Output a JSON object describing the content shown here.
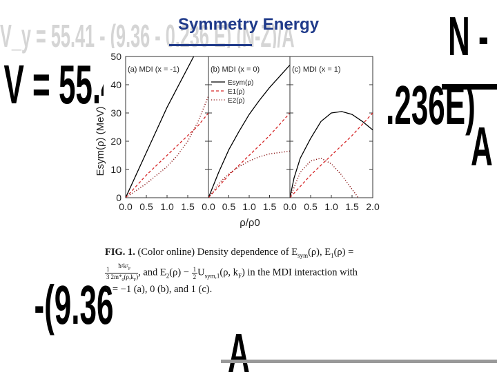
{
  "slide": {
    "title": "Symmetry Energy",
    "background_formula": "V_y = 55.41 - (9.36 - 0.236 E) (N-Z)/A"
  },
  "figure": {
    "ylabel": "Esym(ρ) (MeV)",
    "xlabel": "ρ/ρ0",
    "legend": [
      "Esym(ρ)",
      "E1(ρ)",
      "E2(ρ)"
    ],
    "panel_titles": [
      "(a) MDI (x = -1)",
      "(b) MDI (x = 0)",
      "(c) MDI (x = 1)"
    ],
    "caption_fig": "FIG. 1.",
    "caption_text_1": " (Color online) Density dependence of E",
    "caption_text_2": "(ρ), E",
    "caption_text_3": "(ρ) =",
    "caption_line2_a": ", and E",
    "caption_line2_b": "(ρ) − ",
    "caption_line2_c": "U",
    "caption_line2_d": "(ρ, k",
    "caption_line2_e": ") in the MDI interaction with",
    "caption_line3": "x = −1 (a), 0 (b), and 1 (c)."
  },
  "chart_data": {
    "type": "line",
    "xlabel": "ρ/ρ0",
    "ylabel": "Esym(ρ) (MeV)",
    "xlim": [
      0.0,
      2.0
    ],
    "ylim": [
      0,
      50
    ],
    "x_ticks": [
      "0.0",
      "0.5",
      "1.0",
      "1.5"
    ],
    "x_ticks_last_panel": [
      "0.0",
      "0.5",
      "1.0",
      "1.5",
      "2.0"
    ],
    "y_ticks": [
      "0",
      "10",
      "20",
      "30",
      "40",
      "50"
    ],
    "legend_location": "top-left of panel (b)",
    "panels": [
      {
        "title": "(a) MDI (x = -1)",
        "series": [
          {
            "name": "Esym(ρ)",
            "style": "solid",
            "color": "#000000",
            "x": [
              0,
              0.25,
              0.5,
              0.75,
              1.0,
              1.25,
              1.5,
              1.75
            ],
            "y": [
              0,
              8,
              16,
              24,
              32,
              39,
              46,
              53
            ]
          },
          {
            "name": "E1(ρ)",
            "style": "dashed",
            "color": "#d62728",
            "x": [
              0,
              0.25,
              0.5,
              0.75,
              1.0,
              1.25,
              1.5,
              1.75,
              2.0
            ],
            "y": [
              0,
              4,
              8,
              11.5,
              15,
              18.5,
              22,
              25.5,
              30
            ]
          },
          {
            "name": "E2(ρ)",
            "style": "dotted",
            "color": "#8b1a1a",
            "x": [
              0,
              0.25,
              0.5,
              0.75,
              1.0,
              1.25,
              1.5,
              1.75,
              2.0
            ],
            "y": [
              0,
              2.5,
              5,
              8,
              11,
              15,
              20,
              27,
              36
            ]
          }
        ]
      },
      {
        "title": "(b) MDI (x = 0)",
        "series": [
          {
            "name": "Esym(ρ)",
            "style": "solid",
            "color": "#000000",
            "x": [
              0,
              0.25,
              0.5,
              0.75,
              1.0,
              1.25,
              1.5,
              1.75,
              2.0
            ],
            "y": [
              0,
              9,
              17,
              23.5,
              29.5,
              34.5,
              39,
              43,
              47
            ]
          },
          {
            "name": "E1(ρ)",
            "style": "dashed",
            "color": "#d62728",
            "x": [
              0,
              0.25,
              0.5,
              0.75,
              1.0,
              1.25,
              1.5,
              1.75,
              2.0
            ],
            "y": [
              0,
              4,
              8,
              11.5,
              15,
              18.5,
              22,
              26,
              30
            ]
          },
          {
            "name": "E2(ρ)",
            "style": "dotted",
            "color": "#8b1a1a",
            "x": [
              0,
              0.25,
              0.5,
              0.75,
              1.0,
              1.25,
              1.5,
              1.75,
              2.0
            ],
            "y": [
              0,
              5,
              8.5,
              11,
              13,
              14.5,
              15.5,
              16,
              16.5
            ]
          }
        ]
      },
      {
        "title": "(c) MDI (x = 1)",
        "series": [
          {
            "name": "Esym(ρ)",
            "style": "solid",
            "color": "#000000",
            "x": [
              0,
              0.1,
              0.25,
              0.5,
              0.75,
              1.0,
              1.25,
              1.5,
              1.75,
              2.0
            ],
            "y": [
              0,
              7,
              14,
              21,
              27,
              30,
              30.5,
              29.5,
              27,
              24
            ]
          },
          {
            "name": "E1(ρ)",
            "style": "dashed",
            "color": "#d62728",
            "x": [
              0,
              0.25,
              0.5,
              0.75,
              1.0,
              1.25,
              1.5,
              1.75,
              2.0
            ],
            "y": [
              0,
              4,
              8,
              11.5,
              15,
              18.5,
              22,
              26,
              30
            ]
          },
          {
            "name": "E2(ρ)",
            "style": "dotted",
            "color": "#8b1a1a",
            "x": [
              0,
              0.25,
              0.5,
              0.75,
              1.0,
              1.25,
              1.5,
              1.65
            ],
            "y": [
              0,
              9,
              13,
              14,
              12,
              8,
              3,
              0
            ]
          }
        ]
      }
    ]
  }
}
